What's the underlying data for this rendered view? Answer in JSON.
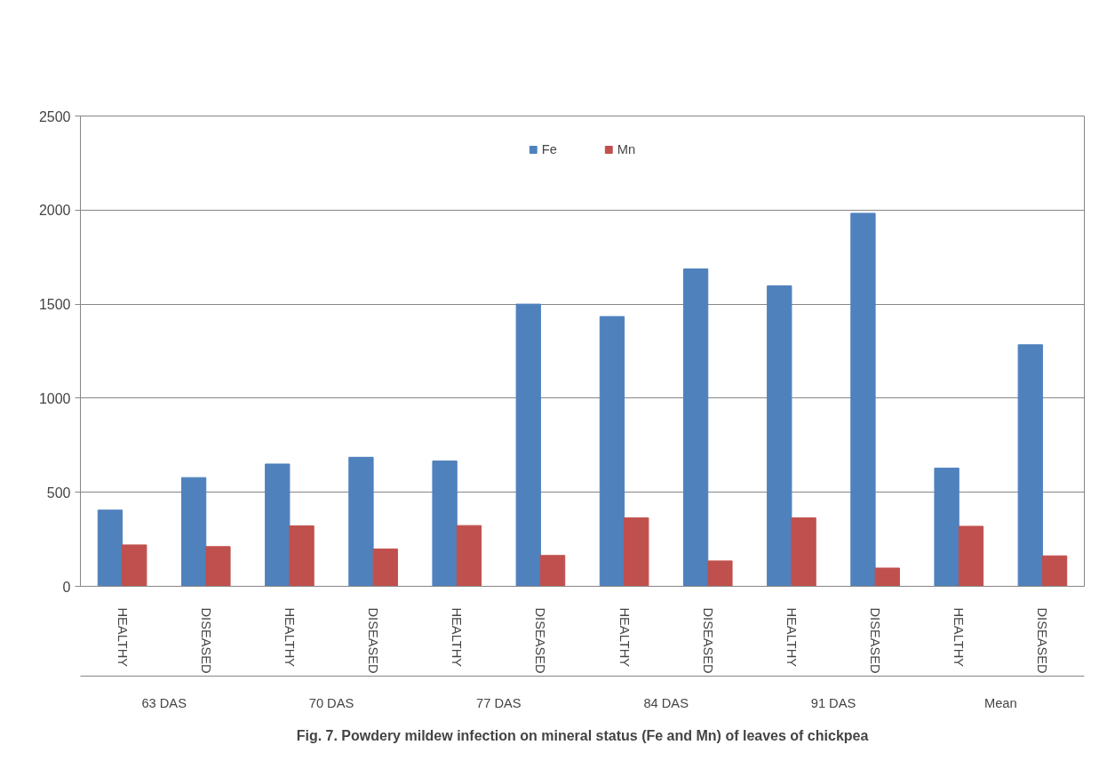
{
  "chart_data": {
    "type": "bar",
    "title": "Fig. 7. Powdery mildew infection on mineral status (Fe and Mn) of leaves of chickpea",
    "categories": [
      "HEALTHY",
      "DISEASED",
      "HEALTHY",
      "DISEASED",
      "HEALTHY",
      "DISEASED",
      "HEALTHY",
      "DISEASED",
      "HEALTHY",
      "DISEASED",
      "HEALTHY",
      "DISEASED"
    ],
    "annotations": [
      "63 DAS",
      "70 DAS",
      "77 DAS",
      "84 DAS",
      "91 DAS",
      "Mean"
    ],
    "series": [
      {
        "name": "Fe",
        "color": "#4f81bd",
        "values": [
          405,
          578,
          650,
          686,
          666,
          1500,
          1434,
          1687,
          1597,
          1983,
          628,
          1284
        ]
      },
      {
        "name": "Mn",
        "color": "#c0504d",
        "values": [
          220,
          211,
          321,
          198,
          323,
          164,
          364,
          135,
          364,
          97,
          319,
          162
        ]
      }
    ],
    "ylim": [
      0,
      2500
    ],
    "yticks": [
      0,
      500,
      1000,
      1500,
      2000,
      2500
    ],
    "grid": "y",
    "legend": "top"
  }
}
